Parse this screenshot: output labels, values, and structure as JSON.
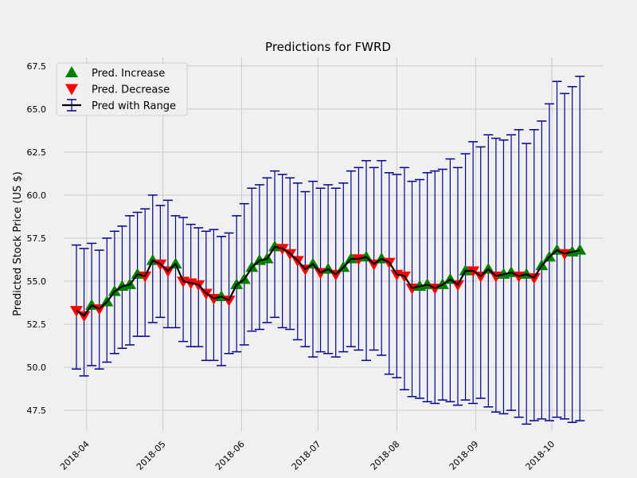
{
  "chart_data": {
    "type": "line",
    "title": "Predictions for FWRD",
    "y_label": "Predicted Stock Price (US $)",
    "x": [
      "2018-03-28",
      "2018-03-31",
      "2018-04-03",
      "2018-04-06",
      "2018-04-09",
      "2018-04-12",
      "2018-04-15",
      "2018-04-18",
      "2018-04-21",
      "2018-04-24",
      "2018-04-27",
      "2018-04-30",
      "2018-05-03",
      "2018-05-06",
      "2018-05-09",
      "2018-05-12",
      "2018-05-15",
      "2018-05-18",
      "2018-05-21",
      "2018-05-24",
      "2018-05-27",
      "2018-05-30",
      "2018-06-02",
      "2018-06-05",
      "2018-06-08",
      "2018-06-11",
      "2018-06-14",
      "2018-06-17",
      "2018-06-20",
      "2018-06-23",
      "2018-06-26",
      "2018-06-29",
      "2018-07-02",
      "2018-07-05",
      "2018-07-08",
      "2018-07-11",
      "2018-07-14",
      "2018-07-17",
      "2018-07-20",
      "2018-07-23",
      "2018-07-26",
      "2018-07-29",
      "2018-08-01",
      "2018-08-04",
      "2018-08-07",
      "2018-08-10",
      "2018-08-13",
      "2018-08-16",
      "2018-08-19",
      "2018-08-22",
      "2018-08-25",
      "2018-08-28",
      "2018-08-31",
      "2018-09-03",
      "2018-09-06",
      "2018-09-09",
      "2018-09-12",
      "2018-09-15",
      "2018-09-18",
      "2018-09-21",
      "2018-09-24",
      "2018-09-27",
      "2018-09-30",
      "2018-10-03",
      "2018-10-06",
      "2018-10-09",
      "2018-10-12"
    ],
    "values": [
      53.3,
      53.0,
      53.6,
      53.4,
      53.8,
      54.4,
      54.7,
      54.8,
      55.4,
      55.3,
      56.2,
      56.0,
      55.6,
      56.0,
      55.0,
      54.9,
      54.8,
      54.3,
      54.0,
      54.1,
      53.9,
      54.8,
      55.1,
      55.8,
      56.2,
      56.3,
      57.0,
      56.9,
      56.6,
      56.2,
      55.7,
      56.0,
      55.5,
      55.7,
      55.4,
      55.8,
      56.3,
      56.3,
      56.4,
      56.0,
      56.3,
      56.1,
      55.4,
      55.3,
      54.6,
      54.7,
      54.8,
      54.6,
      54.8,
      55.1,
      54.8,
      55.6,
      55.6,
      55.3,
      55.7,
      55.3,
      55.4,
      55.5,
      55.3,
      55.4,
      55.2,
      55.9,
      56.4,
      56.8,
      56.6,
      56.7,
      56.8
    ],
    "lower": [
      49.9,
      49.5,
      50.1,
      49.9,
      50.3,
      50.8,
      51.1,
      51.3,
      51.8,
      51.8,
      52.6,
      52.9,
      52.3,
      52.3,
      51.5,
      51.2,
      51.2,
      50.4,
      50.4,
      50.1,
      50.8,
      50.9,
      51.3,
      52.1,
      52.2,
      52.6,
      52.9,
      52.3,
      52.2,
      51.6,
      51.2,
      50.6,
      50.9,
      50.8,
      50.6,
      50.9,
      51.2,
      51.0,
      50.4,
      51.0,
      50.7,
      49.6,
      49.4,
      48.7,
      48.3,
      48.2,
      48.0,
      47.9,
      48.1,
      48.0,
      47.8,
      48.1,
      47.9,
      48.2,
      47.7,
      47.4,
      47.3,
      47.5,
      47.1,
      46.7,
      46.9,
      47.0,
      46.9,
      47.1,
      47.0,
      46.8,
      46.9
    ],
    "upper": [
      57.1,
      56.9,
      57.2,
      56.8,
      57.5,
      57.9,
      58.2,
      58.8,
      59.0,
      59.2,
      60.0,
      59.4,
      59.7,
      58.8,
      58.7,
      58.3,
      58.1,
      57.9,
      58.0,
      57.6,
      57.8,
      58.8,
      59.5,
      60.4,
      60.6,
      61.0,
      61.4,
      61.2,
      61.0,
      60.7,
      60.2,
      60.8,
      60.4,
      60.6,
      60.4,
      60.7,
      61.4,
      61.6,
      62.0,
      61.6,
      62.0,
      61.3,
      61.2,
      61.6,
      60.8,
      60.9,
      61.3,
      61.4,
      61.5,
      62.1,
      61.6,
      62.4,
      63.1,
      62.8,
      63.5,
      63.3,
      63.2,
      63.5,
      63.8,
      63.0,
      63.8,
      64.3,
      65.3,
      66.6,
      65.9,
      66.3,
      66.9
    ],
    "legend": [
      {
        "name": "Pred. Increase",
        "color": "#008000"
      },
      {
        "name": "Pred. Decrease",
        "color": "#ff0000"
      },
      {
        "name": "Pred with Range",
        "color": "#000000",
        "range_color": "#00008b"
      }
    ],
    "legend_position": "upper left",
    "xlim": [
      "2018-03-23",
      "2018-10-21"
    ],
    "xticks": [
      {
        "value": "2018-04-01",
        "label": "2018-04"
      },
      {
        "value": "2018-05-01",
        "label": "2018-05"
      },
      {
        "value": "2018-06-01",
        "label": "2018-06"
      },
      {
        "value": "2018-07-01",
        "label": "2018-07"
      },
      {
        "value": "2018-08-01",
        "label": "2018-08"
      },
      {
        "value": "2018-09-01",
        "label": "2018-09"
      },
      {
        "value": "2018-10-01",
        "label": "2018-10"
      }
    ],
    "ylim": [
      46.3,
      68.0
    ],
    "yticks": [
      47.5,
      {
        "value": 50,
        "label": "50.0"
      },
      52.5,
      {
        "value": 55,
        "label": "55.0"
      },
      57.5,
      {
        "value": 60,
        "label": "60.0"
      },
      62.5,
      {
        "value": 65,
        "label": "65.0"
      },
      67.5
    ],
    "grid": true
  }
}
